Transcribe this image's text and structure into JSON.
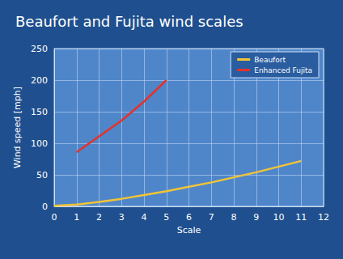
{
  "chart_data": {
    "type": "line",
    "title": "Beaufort and Fujita wind scales",
    "x_label": "Scale",
    "y_label": "Wind speed [mph]",
    "series": [
      {
        "name": "Beaufort",
        "color": "#f2c436",
        "x": [
          0,
          1,
          2,
          3,
          4,
          5,
          6,
          7,
          8,
          9,
          10,
          11
        ],
        "values": [
          1,
          3,
          7,
          12,
          18,
          24,
          31,
          38,
          46,
          54,
          63,
          72
        ]
      },
      {
        "name": "Enhanced Fujita",
        "color": "#e3322b",
        "x": [
          1,
          2,
          3,
          4,
          5
        ],
        "values": [
          86,
          111,
          136,
          166,
          200
        ]
      }
    ],
    "xlim": [
      0,
      12
    ],
    "ylim": [
      0,
      250
    ],
    "xticks": [
      0,
      1,
      2,
      3,
      4,
      5,
      6,
      7,
      8,
      9,
      10,
      11,
      12
    ],
    "yticks": [
      0,
      50,
      100,
      150,
      200,
      250
    ],
    "grid": true,
    "legend": "upper right"
  }
}
